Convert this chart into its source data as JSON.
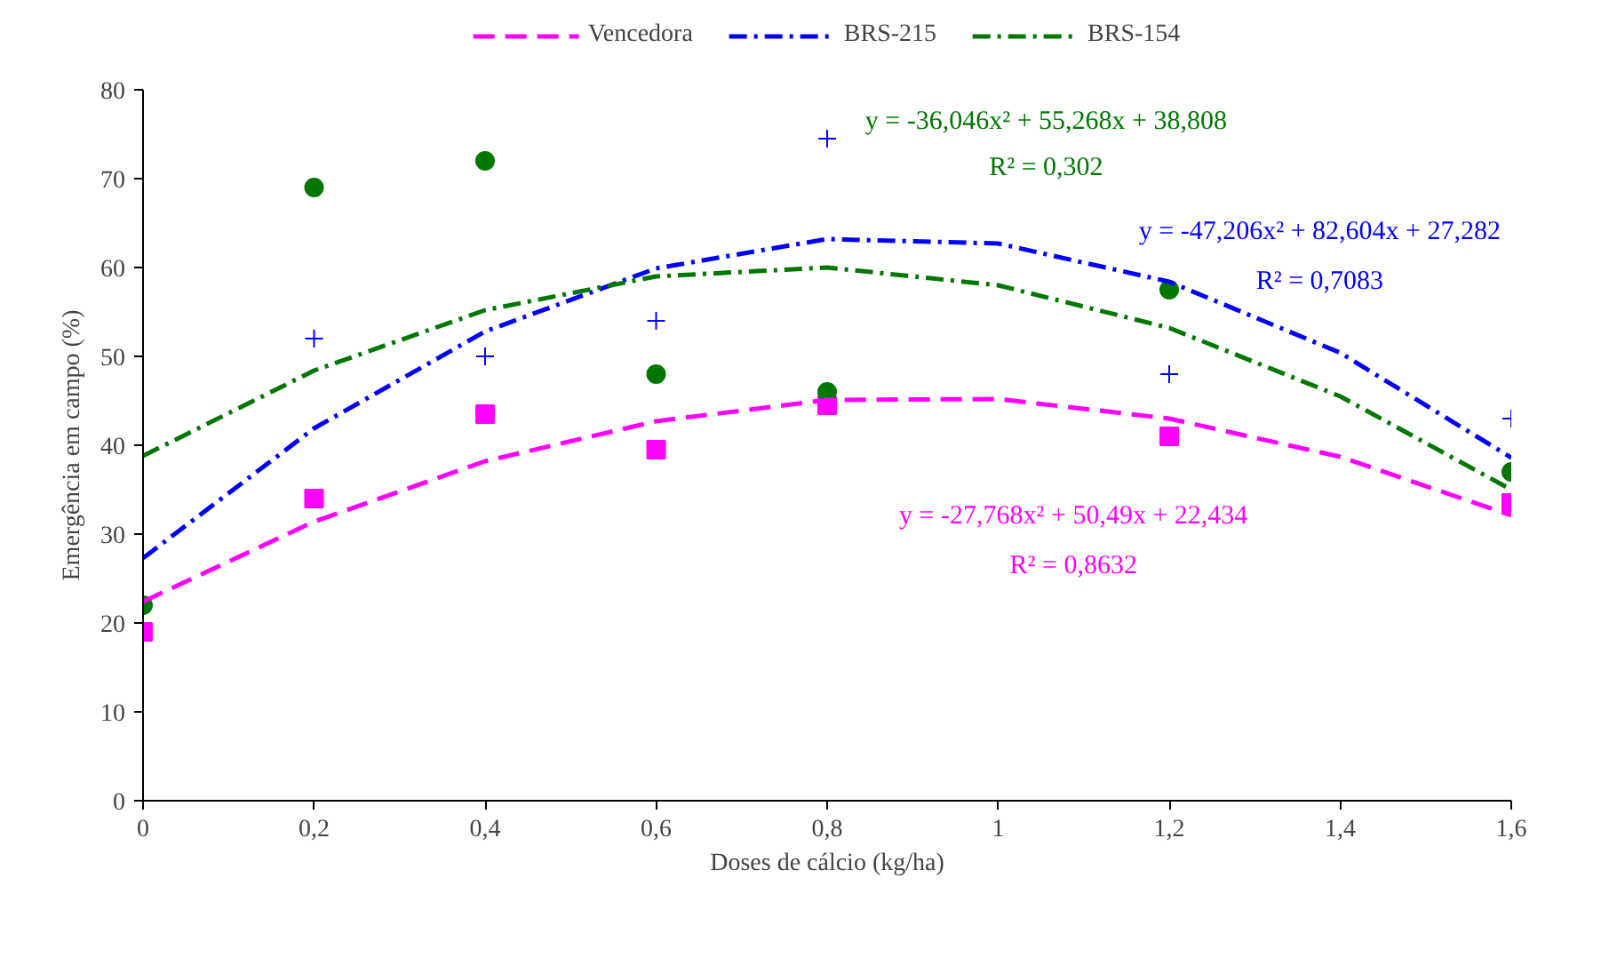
{
  "chart_data": {
    "type": "scatter",
    "xlabel": "Doses de cálcio (kg/ha)",
    "ylabel": "Emergência em campo (%)",
    "x": [
      0,
      0.2,
      0.4,
      0.6,
      0.8,
      1.2,
      1.6
    ],
    "xlim": [
      0,
      1.6
    ],
    "ylim": [
      0,
      80
    ],
    "xticks": [
      0,
      {
        "value": 0.2,
        "label": "0,2"
      },
      {
        "value": 0.4,
        "label": "0,4"
      },
      {
        "value": 0.6,
        "label": "0,6"
      },
      {
        "value": 0.8,
        "label": "0,8"
      },
      1,
      {
        "value": 1.2,
        "label": "1,2"
      },
      {
        "value": 1.4,
        "label": "1,4"
      },
      {
        "value": 1.6,
        "label": "1,6"
      }
    ],
    "yticks": [
      0,
      10,
      20,
      30,
      40,
      50,
      60,
      70,
      80
    ],
    "grid": false,
    "legend": "top",
    "series": [
      {
        "marker": "square",
        "color": "#ff00ff",
        "values": [
          19,
          34,
          43.5,
          39.5,
          44.5,
          41,
          33.5
        ]
      },
      {
        "marker": "cross",
        "color": "#0000ff",
        "values": [
          null,
          52,
          50,
          54,
          74.5,
          48,
          43
        ]
      },
      {
        "marker": "circle",
        "color": "#007700",
        "values": [
          22,
          69,
          72,
          48,
          46,
          57.5,
          37
        ]
      },
      {
        "type": "line",
        "name": "Vencedora",
        "color": "#ff00ff",
        "line_style": "dashed",
        "x": [
          0,
          0.2,
          0.4,
          0.6,
          0.8,
          1,
          1.2,
          1.4,
          1.6
        ],
        "values": [
          22.4,
          31.4,
          38.2,
          42.7,
          45.1,
          45.2,
          43.0,
          38.7,
          32.1
        ]
      },
      {
        "type": "line",
        "name": "BRS-215",
        "color": "#0000ff",
        "line_style": "dashdot",
        "x": [
          0,
          0.2,
          0.4,
          0.6,
          0.8,
          1,
          1.2,
          1.4,
          1.6
        ],
        "values": [
          27.3,
          41.9,
          52.8,
          59.9,
          63.2,
          62.7,
          58.4,
          50.4,
          38.6
        ]
      },
      {
        "type": "line",
        "name": "BRS-154",
        "color": "#007700",
        "line_style": "dashdot",
        "x": [
          0,
          0.2,
          0.4,
          0.6,
          0.8,
          1,
          1.2,
          1.4,
          1.6
        ],
        "values": [
          38.8,
          48.4,
          55.2,
          59.0,
          60.0,
          58.0,
          53.2,
          45.5,
          35.0
        ]
      }
    ],
    "annotations": [
      "y = -36,046x² + 55,268x + 38,808",
      "R² = 0,302",
      "y = -47,206x² + 82,604x + 27,282",
      "R² = 0,7083",
      "y = -27,768x² + 50,49x + 22,434",
      "R² = 0,8632"
    ]
  }
}
